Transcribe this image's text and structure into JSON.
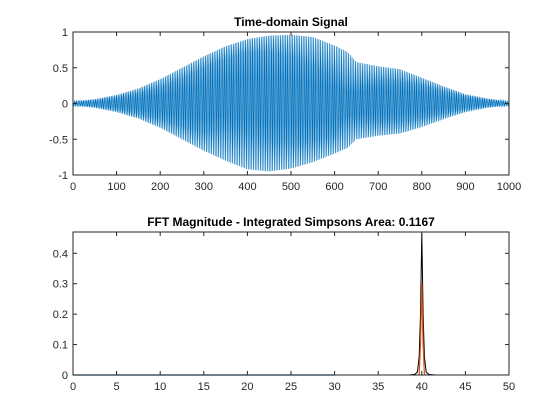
{
  "chart_data": [
    {
      "type": "line",
      "title": "Time-domain Signal",
      "xlabel": "",
      "ylabel": "",
      "xlim": [
        0,
        1000
      ],
      "ylim": [
        -1,
        1
      ],
      "xticks": [
        0,
        100,
        200,
        300,
        400,
        500,
        600,
        700,
        800,
        900,
        1000
      ],
      "xtick_labels": [
        "0",
        "100",
        "200",
        "300",
        "400",
        "500",
        "600",
        "700",
        "800",
        "900",
        "1000"
      ],
      "yticks": [
        -1,
        -0.5,
        0,
        0.5,
        1
      ],
      "ytick_labels": [
        "-1",
        "-0.5",
        "0",
        "0.5",
        "1"
      ],
      "grid": false,
      "series": [
        {
          "color": "#0072BD",
          "style": "dense oscillation",
          "x": [
            0,
            50,
            100,
            150,
            200,
            250,
            300,
            350,
            400,
            450,
            500,
            550,
            600,
            630,
            650,
            700,
            750,
            800,
            850,
            900,
            950,
            1000
          ],
          "upper_envelope": [
            0.03,
            0.06,
            0.12,
            0.21,
            0.34,
            0.5,
            0.66,
            0.8,
            0.9,
            0.95,
            0.96,
            0.93,
            0.81,
            0.72,
            0.58,
            0.52,
            0.48,
            0.36,
            0.24,
            0.13,
            0.07,
            0.03
          ],
          "lower_envelope": [
            -0.03,
            -0.06,
            -0.12,
            -0.21,
            -0.34,
            -0.5,
            -0.66,
            -0.8,
            -0.92,
            -0.95,
            -0.91,
            -0.82,
            -0.7,
            -0.62,
            -0.5,
            -0.45,
            -0.42,
            -0.33,
            -0.22,
            -0.12,
            -0.06,
            -0.03
          ],
          "inner_upper": [
            0.02,
            0.04,
            0.08,
            0.14,
            0.22,
            0.33,
            0.49,
            0.62,
            0.71,
            0.72,
            0.65,
            0.52,
            0.38,
            0.12,
            0.21,
            0.3,
            0.3,
            0.25,
            0.17,
            0.1,
            0.05,
            0.02
          ],
          "inner_lower": [
            -0.02,
            -0.04,
            -0.08,
            -0.14,
            -0.22,
            -0.31,
            -0.4,
            -0.32,
            -0.42,
            -0.5,
            -0.55,
            -0.52,
            -0.44,
            -0.15,
            -0.22,
            -0.26,
            -0.25,
            -0.2,
            -0.14,
            -0.08,
            -0.04,
            -0.02
          ]
        }
      ]
    },
    {
      "type": "line",
      "title": "FFT Magnitude - Integrated Simpsons Area: 0.1167",
      "xlabel": "",
      "ylabel": "",
      "xlim": [
        0,
        50
      ],
      "ylim": [
        0,
        0.47
      ],
      "xticks": [
        0,
        5,
        10,
        15,
        20,
        25,
        30,
        35,
        40,
        45,
        50
      ],
      "xtick_labels": [
        "0",
        "5",
        "10",
        "15",
        "20",
        "25",
        "30",
        "35",
        "40",
        "45",
        "50"
      ],
      "yticks": [
        0,
        0.1,
        0.2,
        0.3,
        0.4
      ],
      "ytick_labels": [
        "0",
        "0.1",
        "0.2",
        "0.3",
        "0.4"
      ],
      "grid": false,
      "series": [
        {
          "color": "#000000",
          "x": [
            0,
            30,
            38.5,
            39.2,
            39.5,
            39.7,
            39.85,
            40.0,
            40.15,
            40.3,
            40.5,
            40.8,
            41.5,
            50
          ],
          "y": [
            0,
            0,
            0,
            0.002,
            0.01,
            0.06,
            0.2,
            0.465,
            0.2,
            0.06,
            0.01,
            0.002,
            0,
            0
          ]
        },
        {
          "color": "#D95319",
          "x": [
            39.7,
            39.85,
            40.0,
            40.15,
            40.3
          ],
          "y": [
            0.0,
            0.1,
            0.3,
            0.1,
            0.0
          ]
        },
        {
          "color": "#0072BD",
          "x": [
            0,
            30
          ],
          "y": [
            0,
            0
          ]
        }
      ]
    }
  ]
}
